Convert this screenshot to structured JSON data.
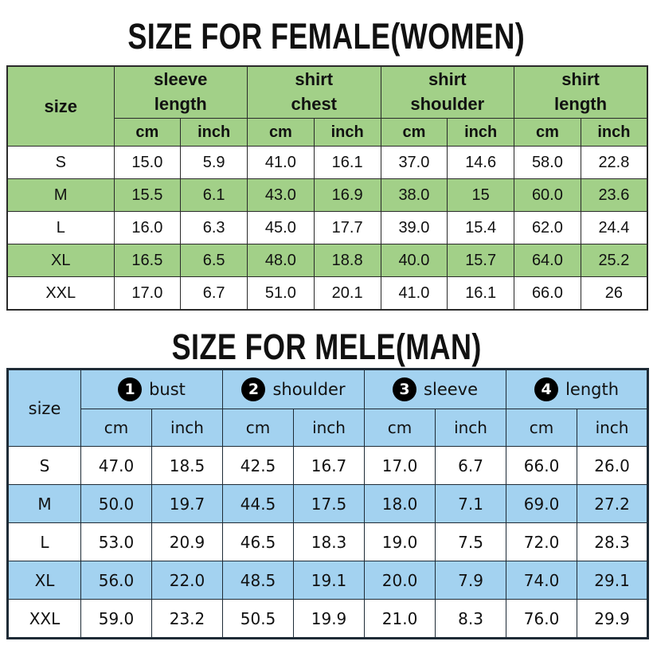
{
  "colors": {
    "female_accent": "#a2d088",
    "male_accent": "#a3d2f0",
    "female_border": "#2a2a2a",
    "male_border": "#1e2b36",
    "badge_bg": "#000000",
    "badge_text": "#ffffff",
    "text": "#111111",
    "background": "#ffffff"
  },
  "female_table": {
    "title": "SIZE FOR FEMALE(WOMEN)",
    "size_header": "size",
    "units": {
      "cm": "cm",
      "inch": "inch"
    },
    "groups": [
      {
        "line1": "sleeve",
        "line2": "length"
      },
      {
        "line1": "shirt",
        "line2": "chest"
      },
      {
        "line1": "shirt",
        "line2": "shoulder"
      },
      {
        "line1": "shirt",
        "line2": "length"
      }
    ],
    "rows": [
      {
        "size": "S",
        "values": [
          "15.0",
          "5.9",
          "41.0",
          "16.1",
          "37.0",
          "14.6",
          "58.0",
          "22.8"
        ]
      },
      {
        "size": "M",
        "values": [
          "15.5",
          "6.1",
          "43.0",
          "16.9",
          "38.0",
          "15",
          "60.0",
          "23.6"
        ]
      },
      {
        "size": "L",
        "values": [
          "16.0",
          "6.3",
          "45.0",
          "17.7",
          "39.0",
          "15.4",
          "62.0",
          "24.4"
        ]
      },
      {
        "size": "XL",
        "values": [
          "16.5",
          "6.5",
          "48.0",
          "18.8",
          "40.0",
          "15.7",
          "64.0",
          "25.2"
        ]
      },
      {
        "size": "XXL",
        "values": [
          "17.0",
          "6.7",
          "51.0",
          "20.1",
          "41.0",
          "16.1",
          "66.0",
          "26"
        ]
      }
    ]
  },
  "male_table": {
    "title": "SIZE FOR MELE(MAN)",
    "size_header": "size",
    "units": {
      "cm": "cm",
      "inch": "inch"
    },
    "groups": [
      {
        "number": "1",
        "label": "bust"
      },
      {
        "number": "2",
        "label": "shoulder"
      },
      {
        "number": "3",
        "label": "sleeve"
      },
      {
        "number": "4",
        "label": "length"
      }
    ],
    "rows": [
      {
        "size": "S",
        "values": [
          "47.0",
          "18.5",
          "42.5",
          "16.7",
          "17.0",
          "6.7",
          "66.0",
          "26.0"
        ]
      },
      {
        "size": "M",
        "values": [
          "50.0",
          "19.7",
          "44.5",
          "17.5",
          "18.0",
          "7.1",
          "69.0",
          "27.2"
        ]
      },
      {
        "size": "L",
        "values": [
          "53.0",
          "20.9",
          "46.5",
          "18.3",
          "19.0",
          "7.5",
          "72.0",
          "28.3"
        ]
      },
      {
        "size": "XL",
        "values": [
          "56.0",
          "22.0",
          "48.5",
          "19.1",
          "20.0",
          "7.9",
          "74.0",
          "29.1"
        ]
      },
      {
        "size": "XXL",
        "values": [
          "59.0",
          "23.2",
          "50.5",
          "19.9",
          "21.0",
          "8.3",
          "76.0",
          "29.9"
        ]
      }
    ]
  }
}
